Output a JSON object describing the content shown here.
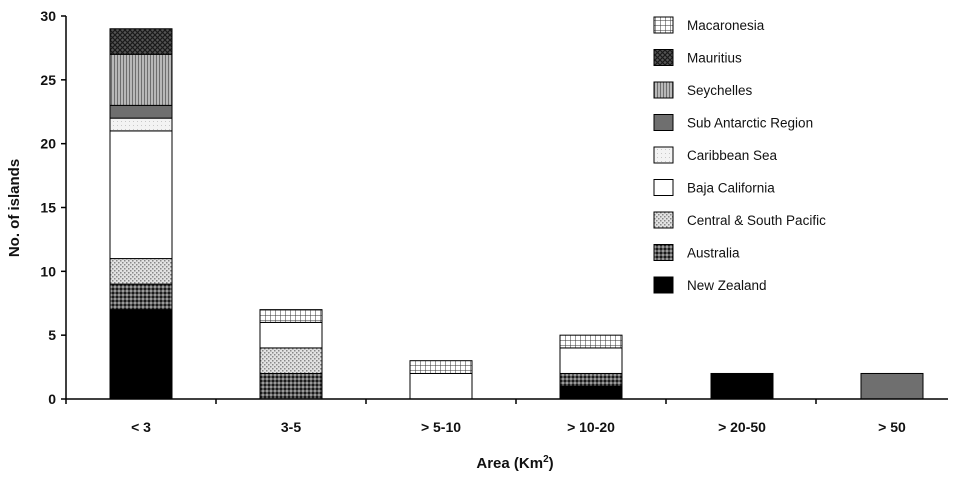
{
  "chart_data": {
    "type": "bar",
    "stacked": true,
    "title": "",
    "xlabel": "Area (Km",
    "xlabel_superscript": "2",
    "xlabel_suffix": ")",
    "ylabel": "No. of islands",
    "ylim": [
      0,
      30
    ],
    "yticks": [
      "0",
      "5",
      "10",
      "15",
      "20",
      "25",
      "30"
    ],
    "categories": [
      "< 3",
      "3-5",
      "> 5-10",
      "> 10-20",
      "> 20-50",
      "> 50"
    ],
    "legend_position": "top-right",
    "series": [
      {
        "name": "New Zealand",
        "pattern": "solid-black",
        "values": [
          7,
          0,
          0,
          1,
          2,
          0
        ]
      },
      {
        "name": "Australia",
        "pattern": "dense-dots",
        "values": [
          2,
          2,
          0,
          1,
          0,
          0
        ]
      },
      {
        "name": "Central & South Pacific",
        "pattern": "light-dots",
        "values": [
          2,
          2,
          0,
          0,
          0,
          0
        ]
      },
      {
        "name": "Baja California",
        "pattern": "white",
        "values": [
          10,
          2,
          2,
          2,
          0,
          0
        ]
      },
      {
        "name": "Caribbean Sea",
        "pattern": "very-light",
        "values": [
          1,
          0,
          0,
          0,
          0,
          0
        ]
      },
      {
        "name": "Sub Antarctic Region",
        "pattern": "solid-gray",
        "values": [
          1,
          0,
          0,
          0,
          0,
          2
        ]
      },
      {
        "name": "Seychelles",
        "pattern": "vertical-lines",
        "values": [
          4,
          0,
          0,
          0,
          0,
          0
        ]
      },
      {
        "name": "Mauritius",
        "pattern": "crosshatch-dark",
        "values": [
          2,
          0,
          0,
          0,
          0,
          0
        ]
      },
      {
        "name": "Macaronesia",
        "pattern": "grid",
        "values": [
          0,
          1,
          1,
          1,
          0,
          0
        ]
      }
    ],
    "legend_order": [
      "Macaronesia",
      "Mauritius",
      "Seychelles",
      "Sub Antarctic Region",
      "Caribbean Sea",
      "Baja California",
      "Central & South Pacific",
      "Australia",
      "New Zealand"
    ]
  }
}
